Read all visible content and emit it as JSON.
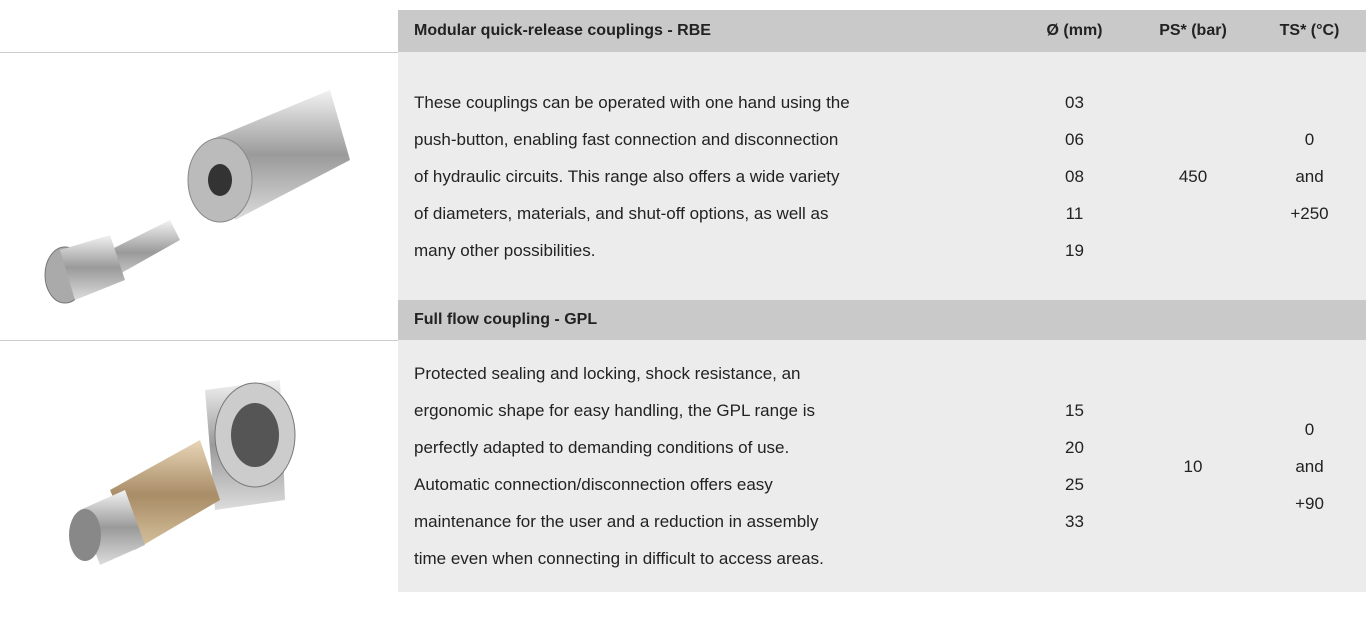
{
  "table": {
    "header": [
      "Modular quick-release couplings - RBE",
      "Ø (mm)",
      "PS* (bar)",
      "TS* (°C)"
    ],
    "sections": [
      {
        "title": null,
        "description": [
          "These couplings can be operated with one hand using the",
          "push-button, enabling fast connection and disconnection",
          "of hydraulic circuits. This range also offers a wide variety",
          "of diameters, materials, and shut-off options, as well as",
          "many other possibilities."
        ],
        "diameters": [
          "03",
          "06",
          "08",
          "11",
          "19"
        ],
        "ps": "450",
        "ts": [
          "0",
          "and",
          "+250"
        ]
      },
      {
        "title": "Full flow coupling - GPL",
        "description": [
          "Protected sealing and locking, shock resistance, an",
          "ergonomic shape for easy handling, the GPL range is",
          "perfectly adapted to demanding conditions of use.",
          "Automatic connection/disconnection offers easy",
          "maintenance for the user and a reduction in assembly",
          "time even when connecting in difficult to access areas."
        ],
        "diameters": [
          "15",
          "20",
          "25",
          "33"
        ],
        "ps": "10",
        "ts": [
          "0",
          "and",
          "+90"
        ]
      }
    ]
  }
}
